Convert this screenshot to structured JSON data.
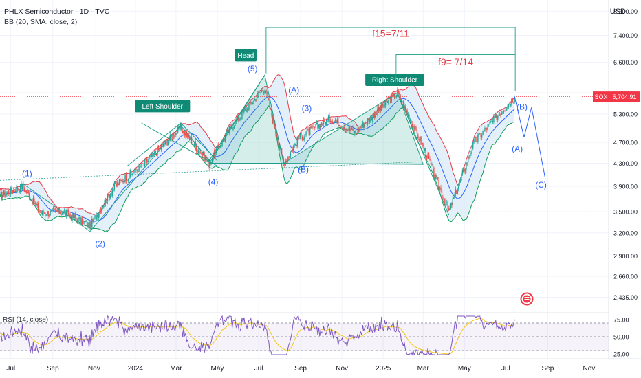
{
  "header": {
    "symbol_line": "PHLX Semiconductor · 1D · TVC",
    "indicator_line": "BB (20, SMA, close, 2)",
    "currency": "USD"
  },
  "price_axis": {
    "ticks": [
      "8,200.00",
      "7,400.00",
      "6,600.00",
      "5,800.00",
      "5,300.00",
      "4,700.00",
      "4,300.00",
      "3,900.00",
      "3,500.00",
      "3,200.00",
      "2,900.00",
      "2,660.00",
      "2,435.00"
    ],
    "last_price_label": "SOX",
    "last_price": "5,704.91"
  },
  "time_axis": {
    "labels": [
      "Jul",
      "Sep",
      "Nov",
      "2024",
      "Mar",
      "May",
      "Jul",
      "Sep",
      "Nov",
      "2025",
      "Mar",
      "May",
      "Jul",
      "Sep",
      "Nov"
    ]
  },
  "rsi": {
    "title": "RSI (14, close)",
    "ticks": [
      "75.00",
      "50.00",
      "25.00"
    ]
  },
  "annotations": {
    "left_shoulder": "Left Shoulder",
    "head": "Head",
    "right_shoulder": "Right Shoulder",
    "fib15": "f15=7/11",
    "fib9": "f9= 7/14",
    "waves": [
      "(1)",
      "(2)",
      "(3)",
      "(4)",
      "(5)",
      "(A)",
      "(B)",
      "(C)"
    ]
  },
  "colors": {
    "candle_up": "#26a69a",
    "candle_down": "#ef5350",
    "bb_upper": "#e53946",
    "bb_basis": "#2962ff",
    "bb_lower": "#0f9d58",
    "bb_fill": "#d8eaf7",
    "pattern": "#1e9e88",
    "wave_label": "#2962ff",
    "fib_text": "#e53946",
    "rsi_line": "#7e57c2",
    "rsi_ma": "#f5c518",
    "price_tag": "#f23645"
  },
  "chart_data": {
    "type": "candlestick",
    "title": "PHLX Semiconductor · 1D · TVC",
    "indicators": [
      "BB (20, SMA, close, 2)",
      "RSI (14, close)"
    ],
    "price_ylim": [
      2300,
      8400
    ],
    "close_series": [
      {
        "date": "2023-06-15",
        "close": 3750
      },
      {
        "date": "2023-07-18",
        "close": 3900
      },
      {
        "date": "2023-08-15",
        "close": 3480
      },
      {
        "date": "2023-09-15",
        "close": 3500
      },
      {
        "date": "2023-10-26",
        "close": 3300
      },
      {
        "date": "2023-12-01",
        "close": 3900
      },
      {
        "date": "2024-01-15",
        "close": 4300
      },
      {
        "date": "2024-03-08",
        "close": 5000
      },
      {
        "date": "2024-04-19",
        "close": 4300
      },
      {
        "date": "2024-05-20",
        "close": 5000
      },
      {
        "date": "2024-07-10",
        "close": 5930
      },
      {
        "date": "2024-08-07",
        "close": 4300
      },
      {
        "date": "2024-08-30",
        "close": 4800
      },
      {
        "date": "2024-10-15",
        "close": 5200
      },
      {
        "date": "2024-11-20",
        "close": 4900
      },
      {
        "date": "2025-01-22",
        "close": 5800
      },
      {
        "date": "2025-03-05",
        "close": 4500
      },
      {
        "date": "2025-04-08",
        "close": 3500
      },
      {
        "date": "2025-05-15",
        "close": 4700
      },
      {
        "date": "2025-07-14",
        "close": 5704.91
      }
    ],
    "projection": [
      {
        "date": "2025-07-14",
        "value": 5704.91,
        "label": ""
      },
      {
        "date": "2025-07-28",
        "value": 4800,
        "label": "(A)"
      },
      {
        "date": "2025-08-08",
        "value": 5450,
        "label": "(B)"
      },
      {
        "date": "2025-08-28",
        "value": 4050,
        "label": "(C)"
      }
    ],
    "last_price": 5704.91,
    "rsi_ylim": [
      20,
      85
    ],
    "rsi_levels": [
      70,
      50,
      30
    ]
  }
}
